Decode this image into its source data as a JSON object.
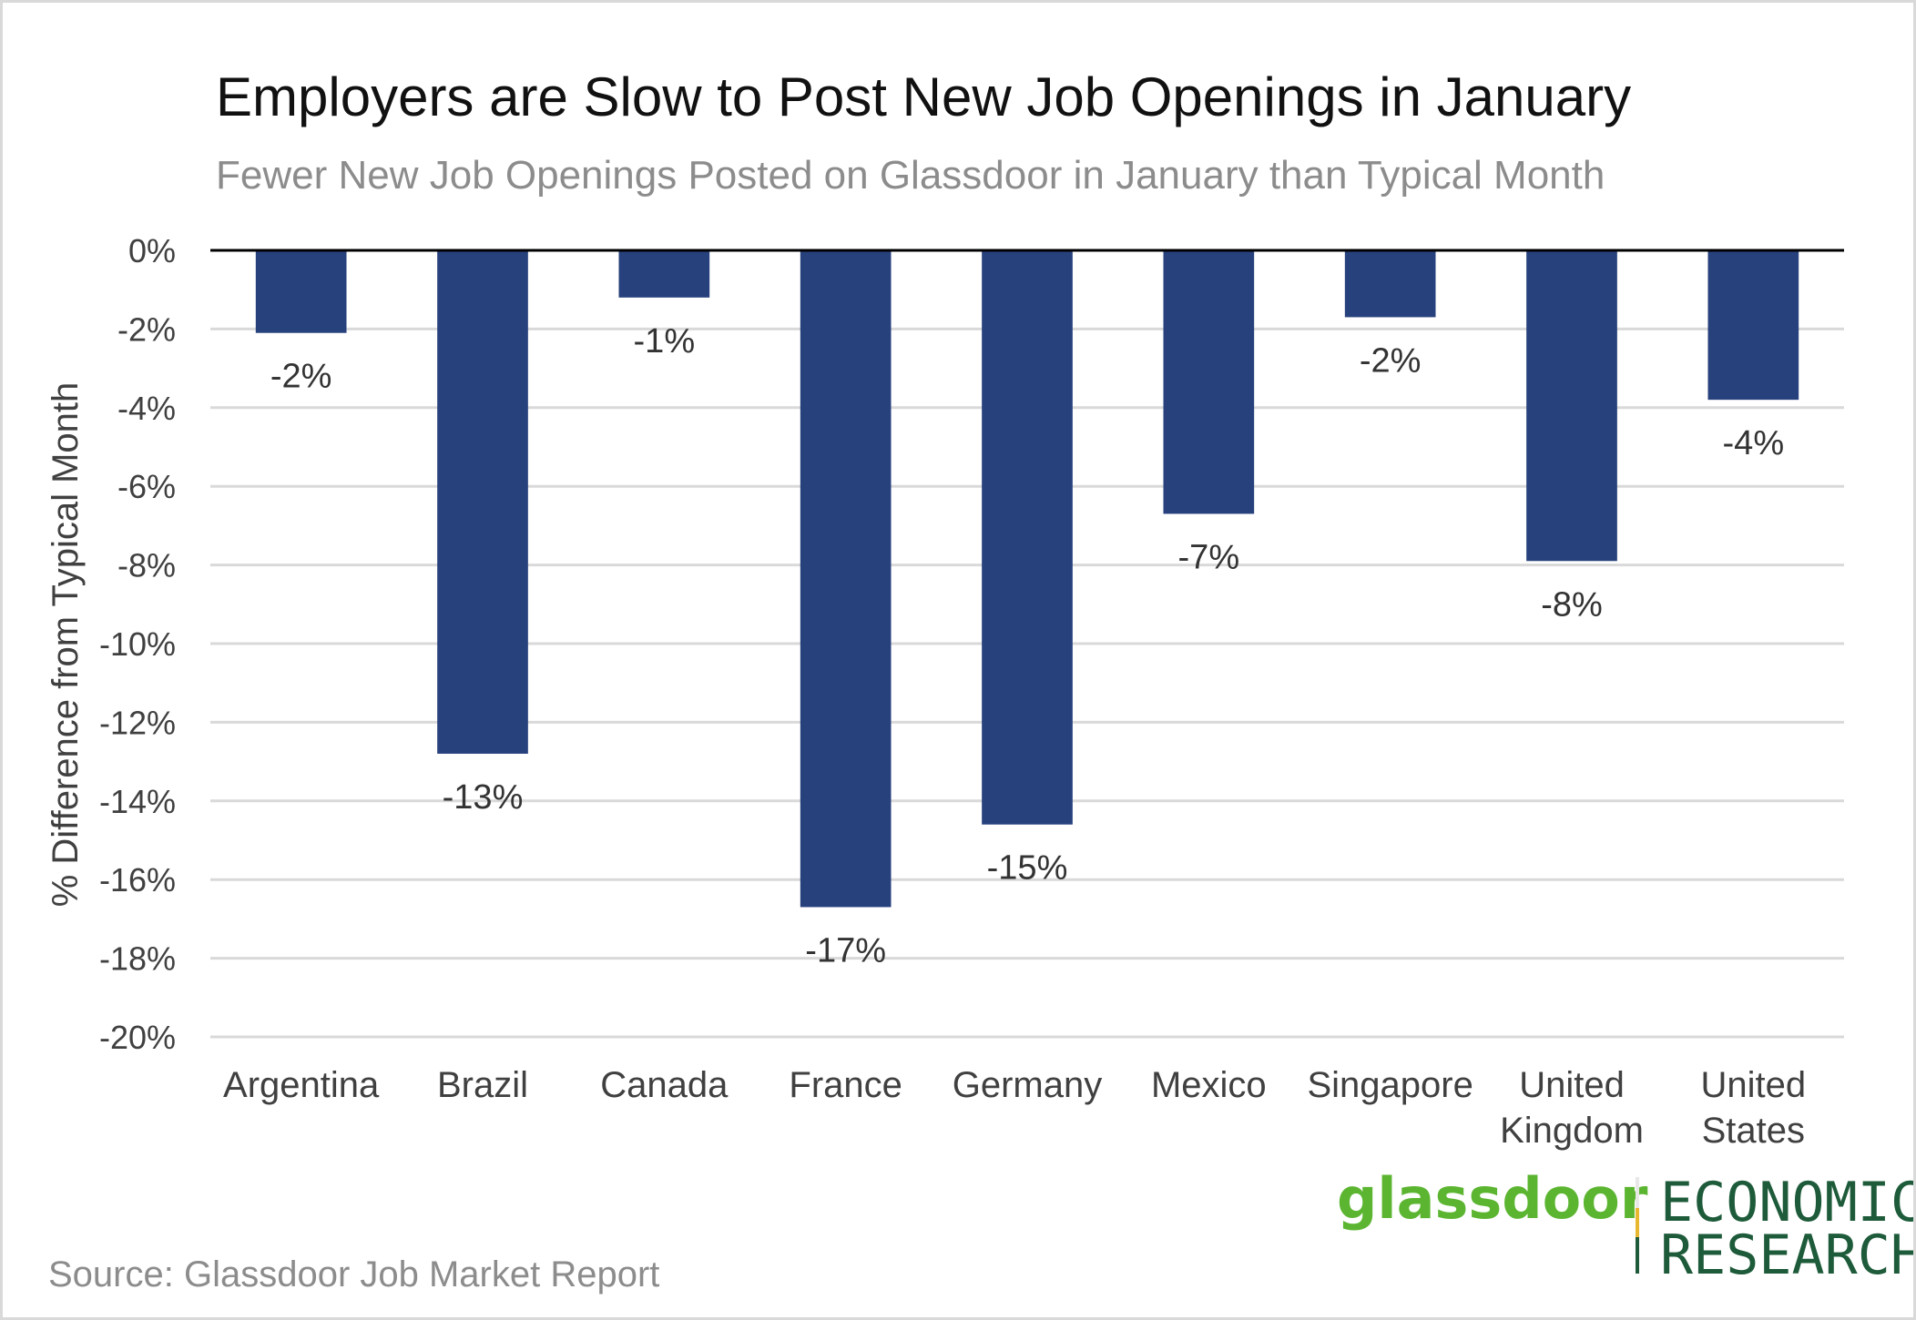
{
  "chart_data": {
    "type": "bar",
    "title": "Employers are Slow to Post New Job Openings in January",
    "subtitle": "Fewer New Job Openings Posted on Glassdoor in January than Typical Month",
    "ylabel": "% Difference from Typical Month",
    "xlabel": "",
    "ylim": [
      -20,
      0
    ],
    "yticks": [
      0,
      -2,
      -4,
      -6,
      -8,
      -10,
      -12,
      -14,
      -16,
      -18,
      -20
    ],
    "ytick_labels": [
      "0%",
      "-2%",
      "-4%",
      "-6%",
      "-8%",
      "-10%",
      "-12%",
      "-14%",
      "-16%",
      "-18%",
      "-20%"
    ],
    "grid": true,
    "legend": "none",
    "categories": [
      [
        "Argentina"
      ],
      [
        "Brazil"
      ],
      [
        "Canada"
      ],
      [
        "France"
      ],
      [
        "Germany"
      ],
      [
        "Mexico"
      ],
      [
        "Singapore"
      ],
      [
        "United",
        "Kingdom"
      ],
      [
        "United",
        "States"
      ]
    ],
    "values": [
      -2.1,
      -12.8,
      -1.2,
      -16.7,
      -14.6,
      -6.7,
      -1.7,
      -7.9,
      -3.8
    ],
    "data_labels": [
      "-2%",
      "-13%",
      "-1%",
      "-17%",
      "-15%",
      "-7%",
      "-2%",
      "-8%",
      "-4%"
    ],
    "bar_color": "#27417d"
  },
  "source": "Source: Glassdoor Job Market Report",
  "logo": {
    "brand": "glassdoor",
    "line1": "ECONOMIC",
    "line2": "RESEARCH",
    "brand_color": "#5cb531",
    "text_color": "#1e5b3a",
    "accent_color": "#e8b730"
  }
}
